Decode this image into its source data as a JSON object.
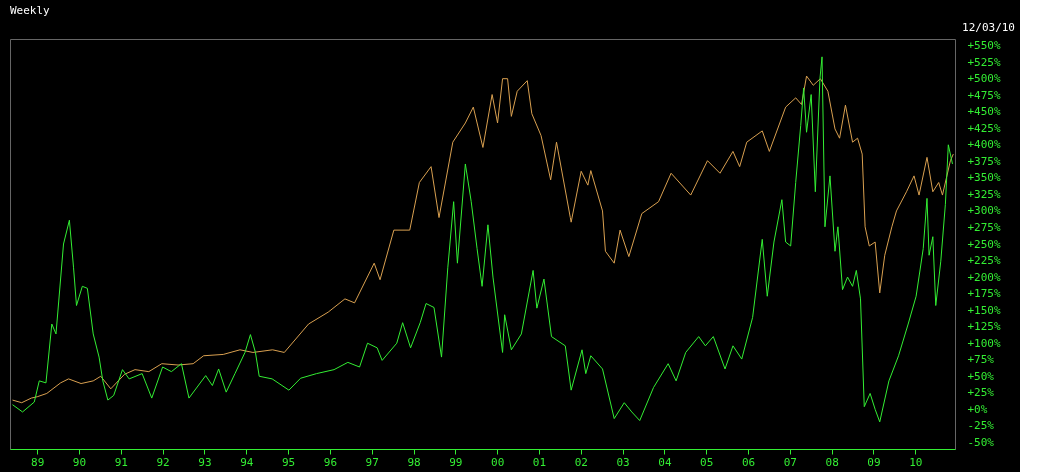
{
  "chart_data": {
    "type": "line",
    "title": "Weekly",
    "annotations": [
      "12/03/10"
    ],
    "grid": false,
    "xlim": [
      1988.35,
      2010.95
    ],
    "ylim": [
      -60,
      560
    ],
    "xticks": [
      {
        "value": 1989,
        "label": "89"
      },
      {
        "value": 1990,
        "label": "90"
      },
      {
        "value": 1991,
        "label": "91"
      },
      {
        "value": 1992,
        "label": "92"
      },
      {
        "value": 1993,
        "label": "93"
      },
      {
        "value": 1994,
        "label": "94"
      },
      {
        "value": 1995,
        "label": "95"
      },
      {
        "value": 1996,
        "label": "96"
      },
      {
        "value": 1997,
        "label": "97"
      },
      {
        "value": 1998,
        "label": "98"
      },
      {
        "value": 1999,
        "label": "99"
      },
      {
        "value": 2000,
        "label": "00"
      },
      {
        "value": 2001,
        "label": "01"
      },
      {
        "value": 2002,
        "label": "02"
      },
      {
        "value": 2003,
        "label": "03"
      },
      {
        "value": 2004,
        "label": "04"
      },
      {
        "value": 2005,
        "label": "05"
      },
      {
        "value": 2006,
        "label": "06"
      },
      {
        "value": 2007,
        "label": "07"
      },
      {
        "value": 2008,
        "label": "08"
      },
      {
        "value": 2009,
        "label": "09"
      },
      {
        "value": 2010,
        "label": "10"
      }
    ],
    "yticks": [
      {
        "value": -50,
        "label": "-50%"
      },
      {
        "value": -25,
        "label": "-25%"
      },
      {
        "value": 0,
        "label": "+0%"
      },
      {
        "value": 25,
        "label": "+25%"
      },
      {
        "value": 50,
        "label": "+50%"
      },
      {
        "value": 75,
        "label": "+75%"
      },
      {
        "value": 100,
        "label": "+100%"
      },
      {
        "value": 125,
        "label": "+125%"
      },
      {
        "value": 150,
        "label": "+150%"
      },
      {
        "value": 175,
        "label": "+175%"
      },
      {
        "value": 200,
        "label": "+200%"
      },
      {
        "value": 225,
        "label": "+225%"
      },
      {
        "value": 250,
        "label": "+250%"
      },
      {
        "value": 275,
        "label": "+275%"
      },
      {
        "value": 300,
        "label": "+300%"
      },
      {
        "value": 325,
        "label": "+325%"
      },
      {
        "value": 350,
        "label": "+350%"
      },
      {
        "value": 375,
        "label": "+375%"
      },
      {
        "value": 400,
        "label": "+400%"
      },
      {
        "value": 425,
        "label": "+425%"
      },
      {
        "value": 450,
        "label": "+450%"
      },
      {
        "value": 475,
        "label": "+475%"
      },
      {
        "value": 500,
        "label": "+500%"
      },
      {
        "value": 525,
        "label": "+525%"
      },
      {
        "value": 550,
        "label": "+550%"
      }
    ],
    "series": [
      {
        "color": "#d9a050",
        "x": [
          1988.41,
          1988.63,
          1988.86,
          1989.0,
          1989.23,
          1989.56,
          1989.75,
          1990.05,
          1990.34,
          1990.52,
          1990.76,
          1991.09,
          1991.34,
          1991.67,
          1991.98,
          1992.37,
          1992.73,
          1992.98,
          1993.45,
          1993.85,
          1994.16,
          1994.63,
          1994.91,
          1995.49,
          1995.96,
          1996.36,
          1996.59,
          1997.06,
          1997.2,
          1997.53,
          1997.91,
          1998.14,
          1998.42,
          1998.61,
          1998.94,
          1999.24,
          1999.43,
          1999.66,
          1999.88,
          2000.01,
          2000.13,
          2000.25,
          2000.34,
          2000.48,
          2000.72,
          2000.83,
          2001.05,
          2001.28,
          2001.42,
          2001.75,
          2001.77,
          2002.01,
          2002.17,
          2002.24,
          2002.52,
          2002.59,
          2002.8,
          2002.94,
          2003.15,
          2003.46,
          2003.86,
          2004.16,
          2004.63,
          2005.03,
          2005.33,
          2005.64,
          2005.8,
          2005.97,
          2006.34,
          2006.51,
          2006.9,
          2007.14,
          2007.28,
          2007.4,
          2007.56,
          2007.73,
          2007.91,
          2008.08,
          2008.19,
          2008.33,
          2008.5,
          2008.62,
          2008.73,
          2008.8,
          2008.9,
          2009.04,
          2009.15,
          2009.27,
          2009.44,
          2009.55,
          2009.79,
          2009.97,
          2010.09,
          2010.28,
          2010.42,
          2010.56,
          2010.65,
          2010.84,
          2010.91
        ],
        "values": [
          14,
          10,
          17,
          19,
          24,
          40,
          46,
          39,
          43,
          50,
          31,
          53,
          60,
          57,
          69,
          67,
          69,
          81,
          83,
          90,
          86,
          90,
          86,
          129,
          147,
          167,
          161,
          221,
          196,
          271,
          271,
          343,
          367,
          290,
          404,
          433,
          457,
          396,
          476,
          433,
          500,
          500,
          443,
          481,
          497,
          447,
          414,
          347,
          404,
          290,
          283,
          360,
          339,
          361,
          300,
          239,
          221,
          271,
          231,
          296,
          314,
          357,
          324,
          376,
          357,
          390,
          367,
          404,
          421,
          390,
          457,
          471,
          461,
          504,
          490,
          500,
          481,
          424,
          410,
          460,
          404,
          410,
          386,
          276,
          247,
          253,
          176,
          233,
          276,
          300,
          329,
          353,
          324,
          381,
          329,
          343,
          324,
          376,
          386
        ]
      },
      {
        "color": "#33ee33",
        "x": [
          1988.41,
          1988.65,
          1988.93,
          1989.05,
          1989.21,
          1989.35,
          1989.45,
          1989.63,
          1989.77,
          1989.87,
          1989.94,
          1990.08,
          1990.2,
          1990.34,
          1990.48,
          1990.57,
          1990.69,
          1990.83,
          1991.04,
          1991.2,
          1991.51,
          1991.74,
          1992.0,
          1992.21,
          1992.45,
          1992.63,
          1993.03,
          1993.19,
          1993.34,
          1993.52,
          1993.73,
          1993.97,
          1994.1,
          1994.22,
          1994.31,
          1994.62,
          1995.02,
          1995.3,
          1995.68,
          1996.1,
          1996.43,
          1996.71,
          1996.9,
          1997.13,
          1997.25,
          1997.6,
          1997.74,
          1997.93,
          1998.16,
          1998.3,
          1998.49,
          1998.67,
          1998.82,
          1998.96,
          1999.05,
          1999.24,
          1999.38,
          1999.52,
          1999.64,
          1999.78,
          1999.9,
          2000.13,
          2000.18,
          2000.34,
          2000.58,
          2000.86,
          2000.95,
          2001.12,
          2001.3,
          2001.63,
          2001.77,
          2002.03,
          2002.12,
          2002.24,
          2002.52,
          2002.8,
          2003.04,
          2003.22,
          2003.41,
          2003.74,
          2004.09,
          2004.28,
          2004.51,
          2004.82,
          2004.98,
          2005.17,
          2005.45,
          2005.64,
          2005.85,
          2006.11,
          2006.34,
          2006.46,
          2006.62,
          2006.81,
          2006.9,
          2007.02,
          2007.14,
          2007.26,
          2007.33,
          2007.4,
          2007.51,
          2007.61,
          2007.72,
          2007.77,
          2007.84,
          2007.96,
          2008.08,
          2008.15,
          2008.26,
          2008.38,
          2008.5,
          2008.59,
          2008.69,
          2008.78,
          2008.92,
          2009.04,
          2009.15,
          2009.37,
          2009.6,
          2009.83,
          2010.02,
          2010.19,
          2010.28,
          2010.33,
          2010.42,
          2010.49,
          2010.61,
          2010.72,
          2010.79,
          2010.89
        ],
        "values": [
          7,
          -4,
          11,
          43,
          40,
          129,
          114,
          250,
          286,
          214,
          157,
          186,
          183,
          114,
          79,
          43,
          14,
          21,
          60,
          46,
          54,
          17,
          64,
          57,
          69,
          17,
          51,
          36,
          61,
          26,
          54,
          86,
          113,
          86,
          50,
          46,
          29,
          47,
          54,
          60,
          71,
          64,
          100,
          93,
          74,
          100,
          131,
          93,
          131,
          160,
          154,
          79,
          214,
          314,
          221,
          371,
          314,
          243,
          186,
          279,
          200,
          86,
          143,
          90,
          114,
          210,
          153,
          197,
          110,
          96,
          29,
          90,
          54,
          81,
          61,
          -14,
          10,
          -4,
          -17,
          33,
          69,
          43,
          86,
          110,
          96,
          110,
          61,
          96,
          76,
          139,
          257,
          171,
          253,
          317,
          253,
          247,
          343,
          429,
          486,
          419,
          476,
          329,
          500,
          533,
          276,
          353,
          239,
          276,
          181,
          200,
          186,
          210,
          167,
          4,
          24,
          0,
          -19,
          43,
          81,
          129,
          171,
          243,
          319,
          233,
          261,
          157,
          224,
          310,
          400,
          371
        ]
      }
    ]
  }
}
